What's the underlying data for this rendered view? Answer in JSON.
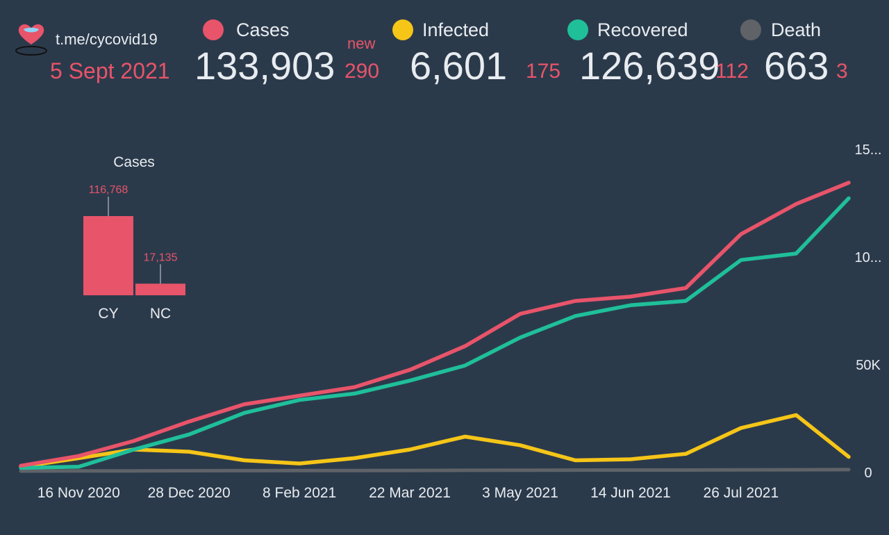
{
  "header": {
    "channel": "t.me/cycovid19",
    "date": "5 Sept 2021",
    "new_label": "new"
  },
  "stats": [
    {
      "label": "Cases",
      "value": "133,903",
      "delta": "290",
      "color": "#e8546a"
    },
    {
      "label": "Infected",
      "value": "6,601",
      "delta": "175",
      "color": "#f5c518"
    },
    {
      "label": "Recovered",
      "value": "126,639",
      "delta": "112",
      "color": "#1fbf9a"
    },
    {
      "label": "Death",
      "value": "663",
      "delta": "3",
      "color": "#5f6368"
    }
  ],
  "chart_data": [
    {
      "type": "bar",
      "title": "Cases",
      "categories": [
        "CY",
        "NC"
      ],
      "values": [
        116768,
        17135
      ],
      "value_labels": [
        "116,768",
        "17,135"
      ],
      "colors": [
        "#e8546a",
        "#e8546a"
      ]
    },
    {
      "type": "line",
      "x_ticks": [
        "16 Nov 2020",
        "28 Dec 2020",
        "8 Feb 2021",
        "22 Mar 2021",
        "3 May 2021",
        "14 Jun 2021",
        "26 Jul 2021"
      ],
      "y_ticks": [
        "0",
        "50K",
        "10...",
        "15..."
      ],
      "ylim": [
        0,
        150000
      ],
      "x": [
        "2020-10-25",
        "2020-11-16",
        "2020-12-07",
        "2020-12-28",
        "2021-01-18",
        "2021-02-08",
        "2021-03-01",
        "2021-03-22",
        "2021-04-12",
        "2021-05-03",
        "2021-05-24",
        "2021-06-14",
        "2021-07-05",
        "2021-07-26",
        "2021-08-16",
        "2021-09-05"
      ],
      "series": [
        {
          "name": "Cases",
          "color": "#e8546a",
          "values": [
            2500,
            7000,
            14000,
            23000,
            31000,
            35000,
            39000,
            47000,
            58000,
            73000,
            79000,
            81000,
            85000,
            110000,
            124000,
            133903
          ]
        },
        {
          "name": "Infected",
          "color": "#f5c518",
          "values": [
            2000,
            6000,
            10000,
            9000,
            5000,
            3500,
            6000,
            10000,
            16000,
            12000,
            5000,
            5500,
            8000,
            20000,
            26000,
            6601
          ]
        },
        {
          "name": "Recovered",
          "color": "#1fbf9a",
          "values": [
            1500,
            2000,
            10000,
            17000,
            27000,
            33000,
            36000,
            42000,
            49000,
            62000,
            72000,
            77000,
            79000,
            98000,
            101000,
            126639
          ]
        },
        {
          "name": "Death",
          "color": "#5f6368",
          "values": [
            0,
            50,
            100,
            150,
            200,
            220,
            240,
            280,
            340,
            400,
            450,
            480,
            500,
            550,
            620,
            663
          ]
        }
      ]
    }
  ]
}
